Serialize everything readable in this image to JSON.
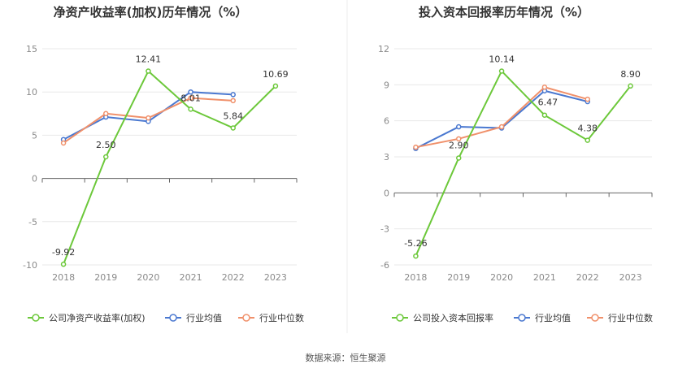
{
  "colors": {
    "company": "#6cc83a",
    "avg": "#4a78d0",
    "median": "#f0906a",
    "grid": "#e8e8e8",
    "axis": "#666666"
  },
  "source": "数据来源：恒生聚源",
  "chart_data": [
    {
      "type": "line",
      "title": "净资产收益率(加权)历年情况（%）",
      "categories": [
        "2018",
        "2019",
        "2020",
        "2021",
        "2022",
        "2023"
      ],
      "ylim": [
        -10,
        15
      ],
      "yticks": [
        -10,
        -5,
        0,
        5,
        10,
        15
      ],
      "ytick_labels": [
        "-10",
        "-5",
        "0",
        "5",
        "10",
        "15"
      ],
      "grid": true,
      "legend_position": "bottom",
      "series": [
        {
          "name": "公司净资产收益率(加权)",
          "color_key": "company",
          "values": [
            -9.92,
            2.5,
            12.41,
            8.01,
            5.84,
            10.69
          ],
          "labels": [
            "-9.92",
            "2.50",
            "12.41",
            "8.01",
            "5.84",
            "10.69"
          ]
        },
        {
          "name": "行业均值",
          "color_key": "avg",
          "values": [
            4.5,
            7.1,
            6.6,
            10.0,
            9.7,
            null
          ]
        },
        {
          "name": "行业中位数",
          "color_key": "median",
          "values": [
            4.1,
            7.5,
            7.0,
            9.3,
            9.0,
            null
          ]
        }
      ]
    },
    {
      "type": "line",
      "title": "投入资本回报率历年情况（%）",
      "categories": [
        "2018",
        "2019",
        "2020",
        "2021",
        "2022",
        "2023"
      ],
      "ylim": [
        -6,
        12
      ],
      "yticks": [
        -6,
        -3,
        0,
        3,
        6,
        9,
        12
      ],
      "ytick_labels": [
        "-6",
        "-3",
        "0",
        "3",
        "6",
        "9",
        "12"
      ],
      "grid": true,
      "legend_position": "bottom",
      "series": [
        {
          "name": "公司投入资本回报率",
          "color_key": "company",
          "values": [
            -5.26,
            2.9,
            10.14,
            6.47,
            4.38,
            8.9
          ],
          "labels": [
            "-5.26",
            "2.90",
            "10.14",
            "6.47",
            "4.38",
            "8.90"
          ]
        },
        {
          "name": "行业均值",
          "color_key": "avg",
          "values": [
            3.7,
            5.5,
            5.4,
            8.5,
            7.6,
            null
          ]
        },
        {
          "name": "行业中位数",
          "color_key": "median",
          "values": [
            3.8,
            4.5,
            5.5,
            8.8,
            7.8,
            null
          ]
        }
      ]
    }
  ]
}
